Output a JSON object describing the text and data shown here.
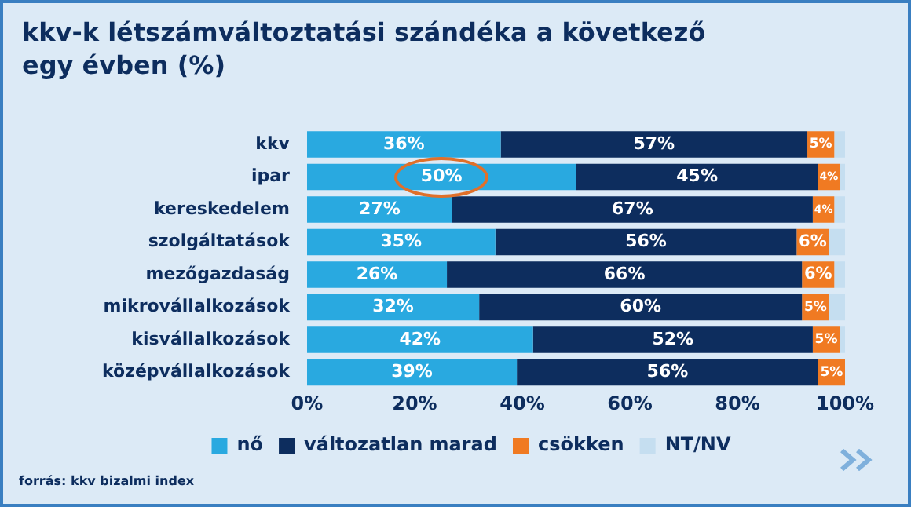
{
  "chart_data": {
    "type": "bar",
    "title": "kkv-k létszámváltoztatási szándéka a következő egy évben (%)",
    "orientation": "horizontal",
    "stacked": true,
    "grid": false,
    "legend": "bottom",
    "categories": [
      "kkv",
      "ipar",
      "kereskedelem",
      "szolgáltatások",
      "mezőgazdaság",
      "mikrovállalkozások",
      "kisvállalkozások",
      "középvállalkozások"
    ],
    "series": [
      {
        "name": "nő",
        "color": "#29a9e0",
        "values": [
          36,
          50,
          27,
          35,
          26,
          32,
          42,
          39
        ],
        "value_labels": [
          "36%",
          "50%",
          "27%",
          "35%",
          "26%",
          "32%",
          "42%",
          "39%"
        ]
      },
      {
        "name": "változatlan marad",
        "color": "#0d2d5e",
        "values": [
          57,
          45,
          67,
          56,
          66,
          60,
          52,
          56
        ],
        "value_labels": [
          "57%",
          "45%",
          "67%",
          "56%",
          "66%",
          "60%",
          "52%",
          "56%"
        ]
      },
      {
        "name": "csökken",
        "color": "#f07a22",
        "values": [
          5,
          4,
          4,
          6,
          6,
          5,
          5,
          5
        ],
        "value_labels": [
          "5%",
          "4%",
          "4%",
          "6%",
          "6%",
          "5%",
          "5%",
          "5%"
        ]
      },
      {
        "name": "NT/NV",
        "color": "#c5def0",
        "values": [
          2,
          1,
          2,
          3,
          2,
          3,
          1,
          0
        ]
      }
    ],
    "xlim": [
      0,
      100
    ],
    "xticks": [
      {
        "value": 0,
        "label": "0%"
      },
      {
        "value": 20,
        "label": "20%"
      },
      {
        "value": 40,
        "label": "40%"
      },
      {
        "value": 60,
        "label": "60%"
      },
      {
        "value": 80,
        "label": "80%"
      },
      {
        "value": 100,
        "label": "100%"
      }
    ],
    "annotations": [
      "forrás: kkv bizalmi index"
    ]
  }
}
